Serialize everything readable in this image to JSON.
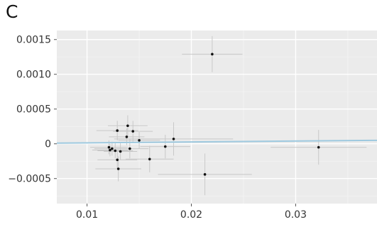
{
  "panel_label": "C",
  "chart_data": {
    "type": "scatter",
    "title": "",
    "xlabel": "",
    "ylabel": "",
    "xlim": [
      0.0071,
      0.0378
    ],
    "ylim": [
      -0.00086,
      0.00163
    ],
    "xticks": [
      {
        "value": 0.01,
        "label": "0.01"
      },
      {
        "value": 0.02,
        "label": "0.02"
      },
      {
        "value": 0.03,
        "label": "0.03"
      }
    ],
    "yticks": [
      {
        "value": 0.0015,
        "label": "0.0015"
      },
      {
        "value": 0.001,
        "label": "0.0010"
      },
      {
        "value": 0.0005,
        "label": "0.0005"
      },
      {
        "value": 0,
        "label": "0"
      },
      {
        "value": -0.0005,
        "label": "−0.0005"
      }
    ],
    "grid": true,
    "points": [
      {
        "x": 0.0121,
        "y": -5e-05,
        "xerr": 0.0018,
        "yerr": 0.0001
      },
      {
        "x": 0.0122,
        "y": -9e-05,
        "xerr": 0.0017,
        "yerr": 9e-05
      },
      {
        "x": 0.0124,
        "y": -7e-05,
        "xerr": 0.0017,
        "yerr": 0.0001
      },
      {
        "x": 0.0127,
        "y": -0.0001,
        "xerr": 0.0017,
        "yerr": 0.00011
      },
      {
        "x": 0.0129,
        "y": -0.00023,
        "xerr": 0.0019,
        "yerr": 0.00013
      },
      {
        "x": 0.0129,
        "y": 0.00019,
        "xerr": 0.002,
        "yerr": 0.00014
      },
      {
        "x": 0.013,
        "y": -0.00036,
        "xerr": 0.0022,
        "yerr": 0.00018
      },
      {
        "x": 0.0132,
        "y": -0.00011,
        "xerr": 0.0016,
        "yerr": 0.00012
      },
      {
        "x": 0.0138,
        "y": 0.0001,
        "xerr": 0.0017,
        "yerr": 0.00012
      },
      {
        "x": 0.0139,
        "y": 0.00026,
        "xerr": 0.0019,
        "yerr": 0.00015
      },
      {
        "x": 0.0141,
        "y": -7e-05,
        "xerr": 0.0018,
        "yerr": 0.00014
      },
      {
        "x": 0.0144,
        "y": 0.00018,
        "xerr": 0.0019,
        "yerr": 0.00015
      },
      {
        "x": 0.015,
        "y": 5e-05,
        "xerr": 0.002,
        "yerr": 0.00012
      },
      {
        "x": 0.016,
        "y": -0.00022,
        "xerr": 0.0023,
        "yerr": 0.00019
      },
      {
        "x": 0.0175,
        "y": -4e-05,
        "xerr": 0.0024,
        "yerr": 0.00017
      },
      {
        "x": 0.0183,
        "y": 7e-05,
        "xerr": 0.0057,
        "yerr": 0.00024
      },
      {
        "x": 0.0213,
        "y": -0.00044,
        "xerr": 0.0045,
        "yerr": 0.0003
      },
      {
        "x": 0.022,
        "y": 0.00129,
        "xerr": 0.0029,
        "yerr": 0.00026
      },
      {
        "x": 0.0322,
        "y": -5e-05,
        "xerr": 0.0046,
        "yerr": 0.00025
      }
    ],
    "fit_line": {
      "x0": 0.0071,
      "y0": 1e-05,
      "x1": 0.0378,
      "y1": 5e-05,
      "color": "#9ec9df"
    },
    "colors": {
      "panel_background": "#ebebeb",
      "grid": "#ffffff",
      "point": "#111111",
      "error_bar": "#c8c8c8"
    }
  }
}
